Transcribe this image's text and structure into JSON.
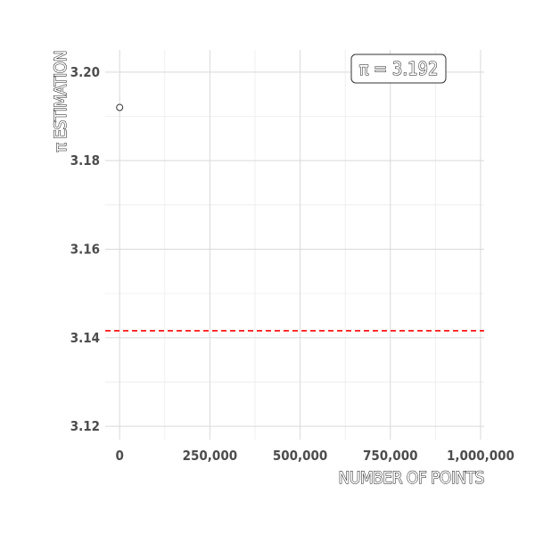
{
  "chart_data": {
    "type": "scatter",
    "title": "",
    "xlabel": "NUMBER OF POINTS",
    "ylabel": "π  ESTIMATION",
    "xlim": [
      -40000,
      1010000
    ],
    "ylim": [
      3.117,
      3.205
    ],
    "x_ticks": [
      0,
      250000,
      500000,
      750000,
      1000000
    ],
    "x_tick_labels": [
      "0",
      "250,000",
      "500,000",
      "750,000",
      "1,000,000"
    ],
    "y_ticks": [
      3.12,
      3.14,
      3.16,
      3.18,
      3.2
    ],
    "y_tick_labels": [
      "3.12",
      "3.14",
      "3.16",
      "3.18",
      "3.20"
    ],
    "points": [
      {
        "x": 0,
        "y": 3.192
      }
    ],
    "reference_line": {
      "y": 3.14159,
      "style": "dashed",
      "color": "#ff0000"
    },
    "annotation": {
      "text": "π = 3.192",
      "placement": "top-right"
    },
    "grid": true
  }
}
